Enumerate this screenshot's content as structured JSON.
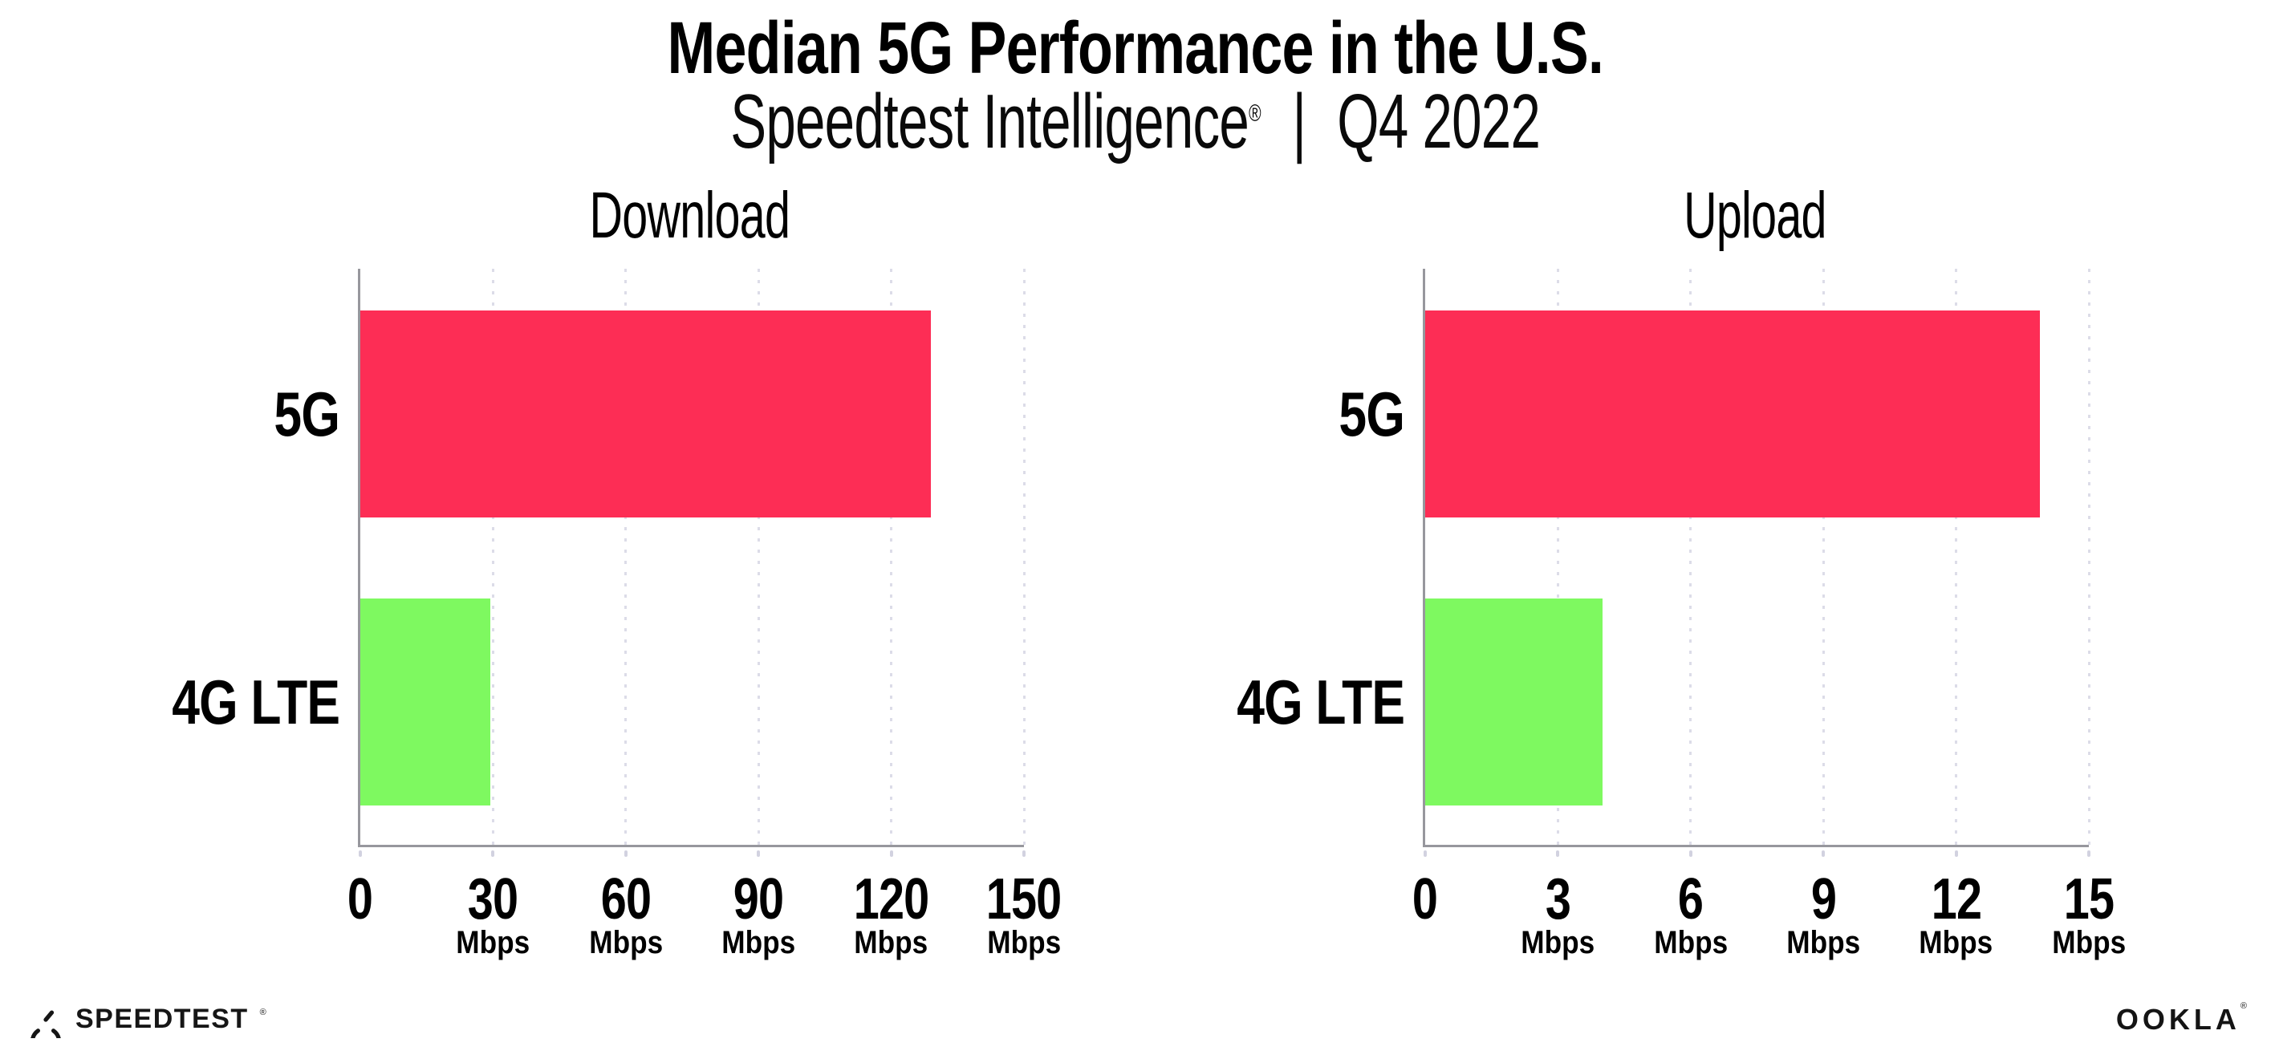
{
  "header": {
    "title": "Median 5G Performance in the U.S.",
    "subtitle": {
      "brand": "Speedtest Intelligence",
      "reg": "®",
      "separator": "|",
      "period": "Q4 2022"
    }
  },
  "chart_data": [
    {
      "type": "bar",
      "orientation": "horizontal",
      "title": "Download",
      "categories": [
        "5G",
        "4G LTE"
      ],
      "values": [
        129,
        29.4
      ],
      "value_unit": "Mbps",
      "xlim": [
        0,
        150
      ],
      "xticks": [
        0,
        30,
        60,
        90,
        120,
        150
      ],
      "xtick_unit_label": "Mbps",
      "xtick_unit_on_zero": false,
      "bar_colors": [
        "#FD2D55",
        "#7EF960"
      ],
      "grid": "dotted-vertical",
      "legend_position": "none",
      "xlabel": "",
      "ylabel": ""
    },
    {
      "type": "bar",
      "orientation": "horizontal",
      "title": "Upload",
      "categories": [
        "5G",
        "4G LTE"
      ],
      "values": [
        13.9,
        4.0
      ],
      "value_unit": "Mbps",
      "xlim": [
        0,
        15
      ],
      "xticks": [
        0,
        3,
        6,
        9,
        12,
        15
      ],
      "xtick_unit_label": "Mbps",
      "xtick_unit_on_zero": false,
      "bar_colors": [
        "#FD2D55",
        "#7EF960"
      ],
      "grid": "dotted-vertical",
      "legend_position": "none",
      "xlabel": "",
      "ylabel": ""
    }
  ],
  "colors": {
    "bar_5g": "#FD2D55",
    "bar_4g_lte": "#7EF960",
    "axis": "#97979D",
    "grid_dots": "#DCDCE8",
    "text": "#000000"
  },
  "footer": {
    "speedtest": {
      "label": "SPEEDTEST",
      "reg": "®"
    },
    "ookla": {
      "label": "OOKLA",
      "reg": "®"
    }
  }
}
